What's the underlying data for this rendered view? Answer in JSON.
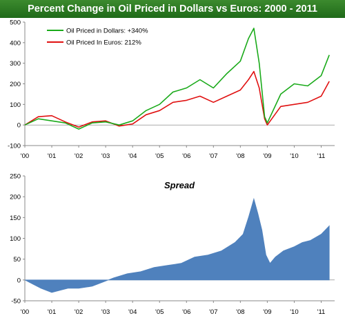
{
  "header": {
    "title": "Percent Change in Oil Priced in Dollars vs Euros: 2000 - 2011"
  },
  "chart_data": [
    {
      "type": "line",
      "title": "",
      "xlabel": "",
      "ylabel": "",
      "ylim": [
        -100,
        500
      ],
      "yticks": [
        -100,
        0,
        100,
        200,
        300,
        400,
        500
      ],
      "xtick_labels": [
        "'00",
        "'01",
        "'02",
        "'03",
        "'04",
        "'05",
        "'06",
        "'07",
        "'08",
        "'09",
        "'10",
        "'11"
      ],
      "x": [
        2000.0,
        2000.5,
        2001.0,
        2001.5,
        2002.0,
        2002.5,
        2003.0,
        2003.5,
        2004.0,
        2004.5,
        2005.0,
        2005.5,
        2006.0,
        2006.5,
        2007.0,
        2007.5,
        2008.0,
        2008.3,
        2008.5,
        2008.7,
        2008.9,
        2009.0,
        2009.5,
        2010.0,
        2010.5,
        2011.0,
        2011.3
      ],
      "series": [
        {
          "name": "Oil Priced in Dollars: +340%",
          "color": "#1aaa1a",
          "values": [
            0,
            30,
            20,
            10,
            -20,
            10,
            15,
            0,
            20,
            70,
            100,
            160,
            180,
            220,
            180,
            250,
            310,
            420,
            470,
            300,
            40,
            10,
            150,
            200,
            190,
            240,
            340
          ]
        },
        {
          "name": "Oil Priced In Euros: 212%",
          "color": "#e01010",
          "values": [
            0,
            40,
            45,
            15,
            -10,
            15,
            20,
            -5,
            5,
            50,
            70,
            110,
            120,
            140,
            110,
            140,
            170,
            220,
            260,
            180,
            30,
            0,
            90,
            100,
            110,
            140,
            212
          ]
        }
      ],
      "legend": "top-left",
      "grid": false
    },
    {
      "type": "area",
      "title": "Spread",
      "xlabel": "",
      "ylabel": "",
      "ylim": [
        -50,
        250
      ],
      "yticks": [
        -50,
        0,
        50,
        100,
        150,
        200,
        250
      ],
      "xtick_labels": [
        "'00",
        "'01",
        "'02",
        "'03",
        "'04",
        "'05",
        "'06",
        "'07",
        "'08",
        "'09",
        "'10",
        "'11"
      ],
      "x": [
        2000.0,
        2000.3,
        2000.6,
        2001.0,
        2001.3,
        2001.6,
        2002.0,
        2002.5,
        2002.9,
        2003.3,
        2003.8,
        2004.3,
        2004.8,
        2005.3,
        2005.8,
        2006.3,
        2006.8,
        2007.3,
        2007.8,
        2008.1,
        2008.3,
        2008.5,
        2008.65,
        2008.8,
        2008.95,
        2009.1,
        2009.3,
        2009.6,
        2010.0,
        2010.3,
        2010.6,
        2011.0,
        2011.3
      ],
      "series": [
        {
          "name": "",
          "color": "#4f81bd",
          "values": [
            0,
            -10,
            -20,
            -30,
            -25,
            -20,
            -20,
            -15,
            -5,
            5,
            15,
            20,
            30,
            35,
            40,
            55,
            60,
            70,
            90,
            110,
            150,
            195,
            160,
            120,
            60,
            40,
            55,
            70,
            80,
            90,
            95,
            110,
            130
          ]
        }
      ],
      "legend": "none",
      "grid": false
    }
  ]
}
